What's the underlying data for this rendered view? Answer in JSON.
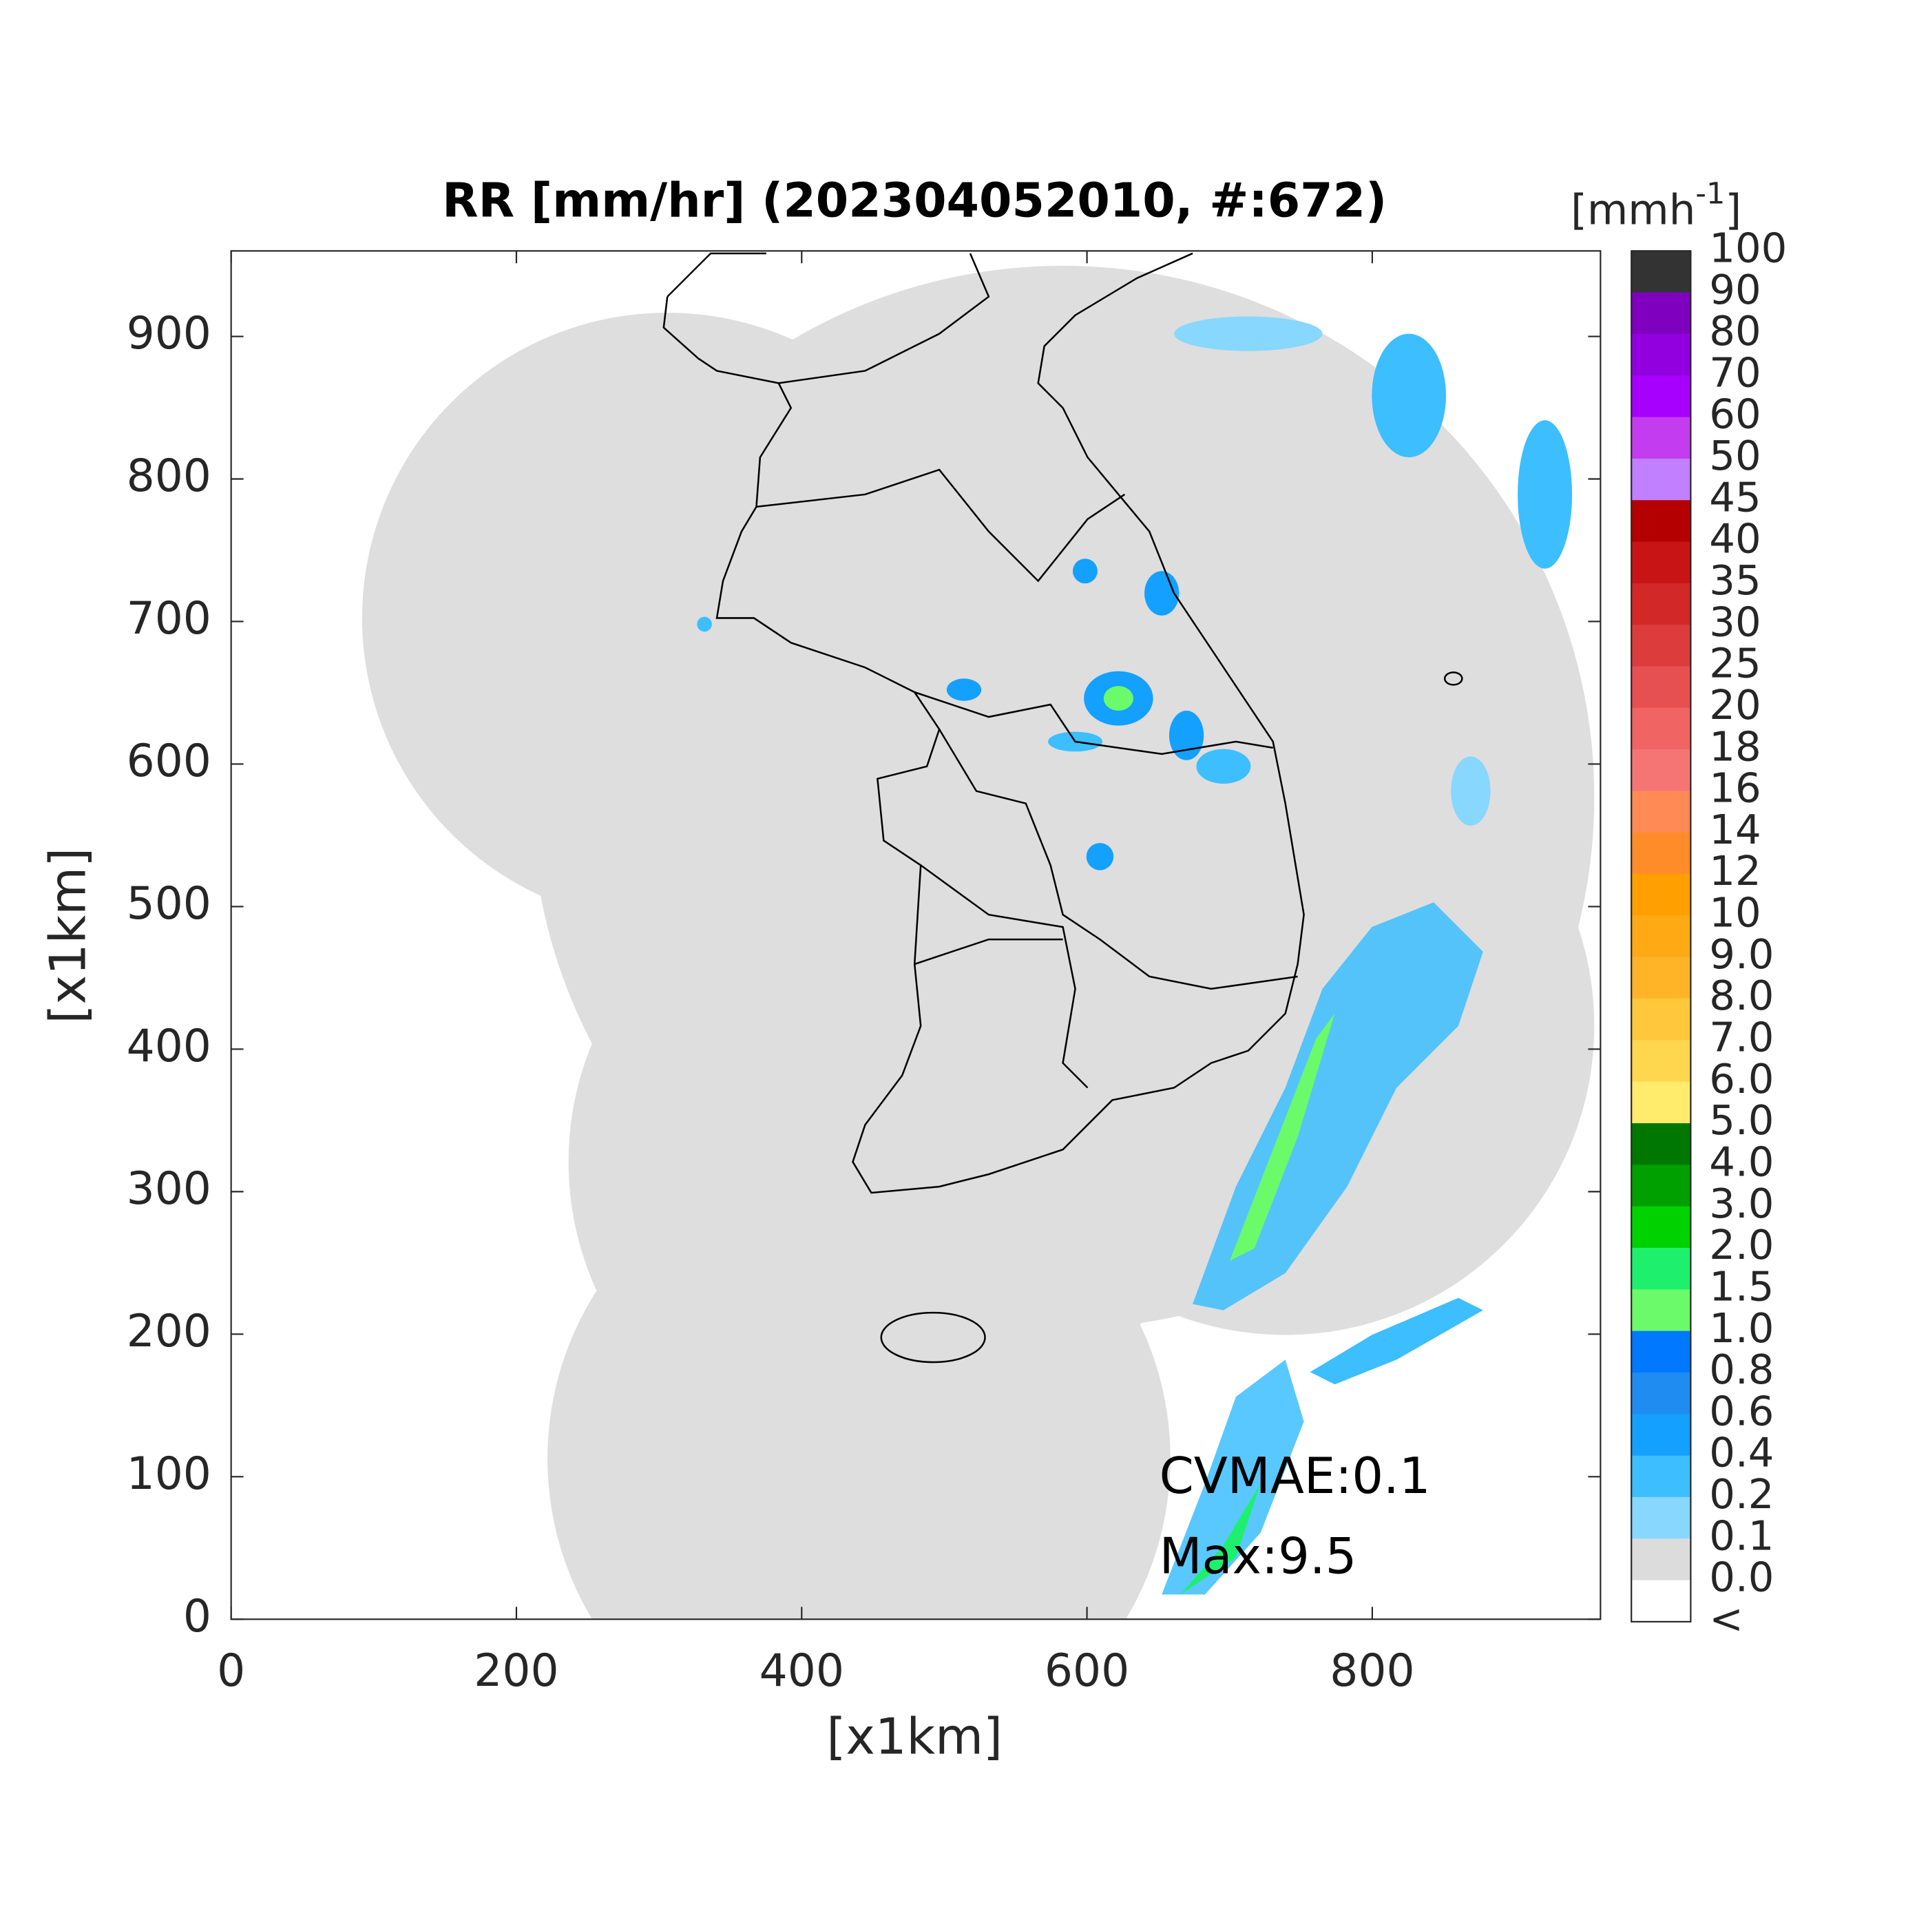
{
  "chart_data": {
    "type": "map",
    "title": "RR [mm/hr] (202304052010, #:672)",
    "xlabel": "[x1km]",
    "ylabel": "[x1km]",
    "xlim": [
      0,
      960
    ],
    "ylim": [
      0,
      960
    ],
    "xticks": [
      0,
      200,
      400,
      600,
      800
    ],
    "yticks": [
      0,
      100,
      200,
      300,
      400,
      500,
      600,
      700,
      800,
      900
    ],
    "colorbar": {
      "unit": {
        "base": "[mmh",
        "exponent": "-1",
        "close": "]"
      },
      "labels": [
        "100",
        "90",
        "80",
        "70",
        "60",
        "50",
        "45",
        "40",
        "35",
        "30",
        "25",
        "20",
        "18",
        "16",
        "14",
        "12",
        "10",
        "9.0",
        "8.0",
        "7.0",
        "6.0",
        "5.0",
        "4.0",
        "3.0",
        "2.0",
        "1.5",
        "1.0",
        "0.8",
        "0.6",
        "0.4",
        "0.2",
        "0.1",
        "0.0",
        "<"
      ],
      "colors": [
        "#333333",
        "#7f00bf",
        "#9200e0",
        "#a800ff",
        "#c43cf0",
        "#c080ff",
        "#b40000",
        "#c81414",
        "#d22828",
        "#dc3c3c",
        "#e65050",
        "#f06464",
        "#f57575",
        "#ff8a55",
        "#ff8c28",
        "#ffa000",
        "#ffaa14",
        "#ffb428",
        "#ffc83c",
        "#ffd74f",
        "#ffeb6c",
        "#007800",
        "#00a000",
        "#00d200",
        "#1ef06e",
        "#6afa6a",
        "#0078ff",
        "#1e8cf0",
        "#14a0ff",
        "#3cbeff",
        "#87d7ff",
        "#dcdcdc",
        "#ffffff"
      ]
    },
    "annotations": [
      "CVMAE:0.1",
      "Max:9.5"
    ]
  }
}
